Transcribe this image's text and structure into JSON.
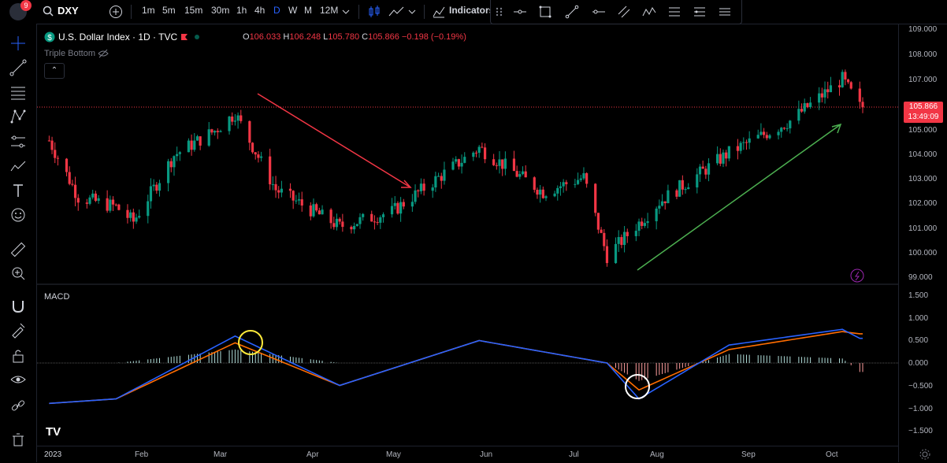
{
  "header": {
    "notification_count": "9",
    "symbol": "DXY",
    "intervals": [
      "1m",
      "5m",
      "15m",
      "30m",
      "1h",
      "4h",
      "D",
      "W",
      "M",
      "12M"
    ],
    "active_interval": "D",
    "indicators_label": "Indicators"
  },
  "legend": {
    "title": "U.S. Dollar Index · 1D · TVC",
    "ohlc": [
      {
        "k": "O",
        "v": "106.033"
      },
      {
        "k": "H",
        "v": "106.248"
      },
      {
        "k": "L",
        "v": "105.780"
      },
      {
        "k": "C",
        "v": "105.866"
      },
      {
        "k": "",
        "v": "−0.198 (−0.19%)"
      }
    ],
    "indicator": "Triple Bottom",
    "collapse_glyph": "⌃"
  },
  "macd_label": "MACD",
  "price_axis": [
    "109.000",
    "108.000",
    "107.000",
    "105.000",
    "104.000",
    "103.000",
    "102.000",
    "101.000",
    "100.000",
    "99.000"
  ],
  "macd_axis": [
    "1.500",
    "1.000",
    "0.500",
    "0.000",
    "−0.500",
    "−1.000",
    "−1.500"
  ],
  "last_price": {
    "price": "105.866",
    "countdown": "13:49:09"
  },
  "time_axis": [
    "2023",
    "Feb",
    "Mar",
    "Apr",
    "May",
    "Jun",
    "Jul",
    "Aug",
    "Sep",
    "Oct"
  ],
  "colors": {
    "up": "#089981",
    "down": "#f23645",
    "macd": "#2962ff",
    "signal": "#ff6d00",
    "arrow_down": "#f23645",
    "arrow_up": "#4caf50"
  },
  "chart_data": {
    "type": "candlestick",
    "title": "U.S. Dollar Index · 1D · TVC",
    "close_series": [
      {
        "date": "2023-01-03",
        "close": 104.5
      },
      {
        "date": "2023-01-13",
        "close": 102.2
      },
      {
        "date": "2023-01-26",
        "close": 101.8
      },
      {
        "date": "2023-02-01",
        "close": 101.2
      },
      {
        "date": "2023-02-15",
        "close": 103.9
      },
      {
        "date": "2023-03-01",
        "close": 104.9
      },
      {
        "date": "2023-03-08",
        "close": 105.6
      },
      {
        "date": "2023-03-22",
        "close": 102.5
      },
      {
        "date": "2023-04-13",
        "close": 101.0
      },
      {
        "date": "2023-05-01",
        "close": 101.6
      },
      {
        "date": "2023-05-31",
        "close": 104.2
      },
      {
        "date": "2023-06-22",
        "close": 102.4
      },
      {
        "date": "2023-07-06",
        "close": 103.0
      },
      {
        "date": "2023-07-14",
        "close": 99.8
      },
      {
        "date": "2023-08-01",
        "close": 102.0
      },
      {
        "date": "2023-08-25",
        "close": 104.0
      },
      {
        "date": "2023-09-15",
        "close": 105.3
      },
      {
        "date": "2023-10-03",
        "close": 107.0
      },
      {
        "date": "2023-10-09",
        "close": 105.866
      }
    ],
    "macd_series": [
      {
        "date": "2023-01-03",
        "macd": -0.9,
        "signal": -0.9
      },
      {
        "date": "2023-01-26",
        "macd": -0.8,
        "signal": -0.8
      },
      {
        "date": "2023-03-08",
        "macd": 0.6,
        "signal": 0.45
      },
      {
        "date": "2023-04-13",
        "macd": -0.5,
        "signal": -0.5
      },
      {
        "date": "2023-05-31",
        "macd": 0.5,
        "signal": 0.5
      },
      {
        "date": "2023-07-14",
        "macd": 0.0,
        "signal": 0.0
      },
      {
        "date": "2023-07-25",
        "macd": -0.8,
        "signal": -0.6
      },
      {
        "date": "2023-08-25",
        "macd": 0.4,
        "signal": 0.3
      },
      {
        "date": "2023-10-03",
        "macd": 0.75,
        "signal": 0.7
      },
      {
        "date": "2023-10-09",
        "macd": 0.55,
        "signal": 0.65
      }
    ],
    "y_range": [
      99,
      109
    ],
    "macd_range": [
      -1.5,
      1.5
    ]
  }
}
